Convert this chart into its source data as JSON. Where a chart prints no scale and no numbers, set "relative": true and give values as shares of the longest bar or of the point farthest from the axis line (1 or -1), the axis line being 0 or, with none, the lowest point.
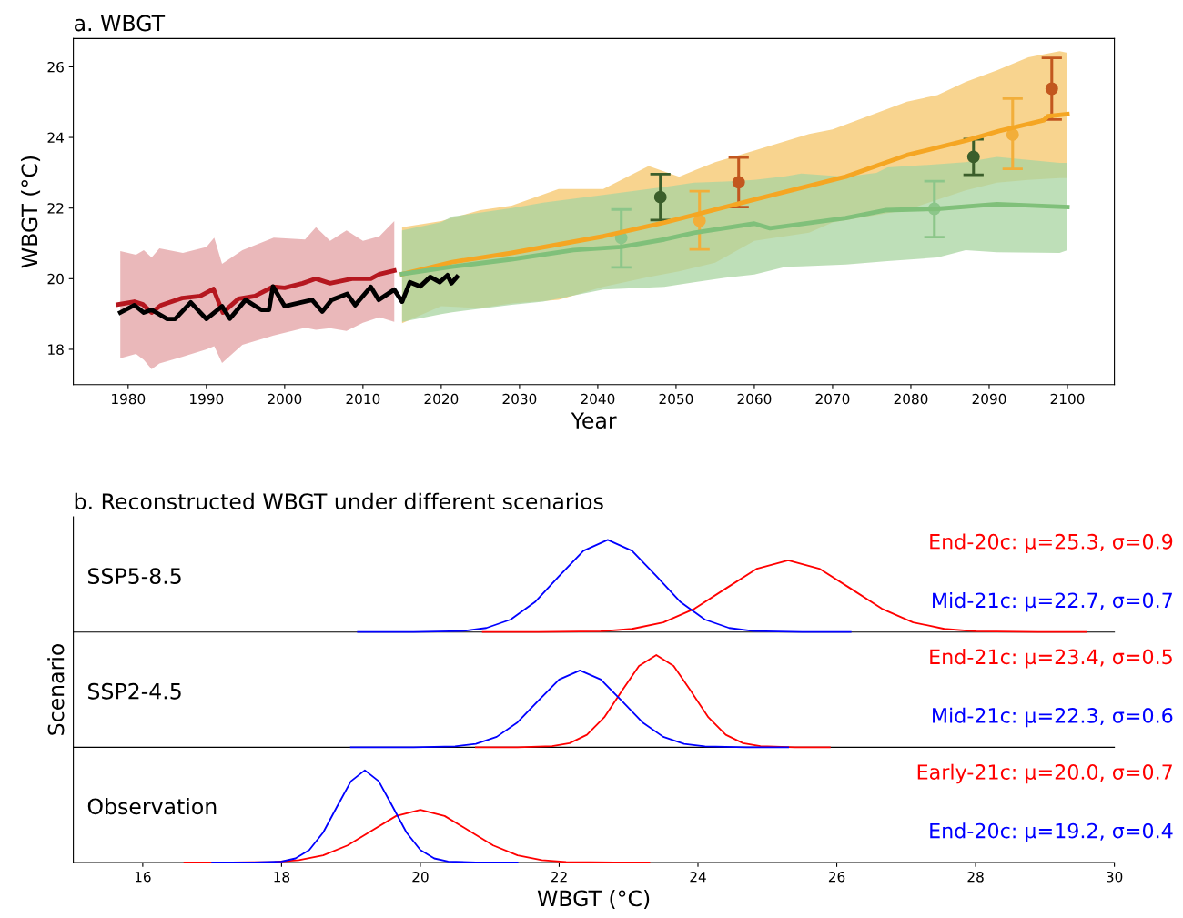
{
  "chart_data": [
    {
      "type": "line",
      "title": "a. WBGT",
      "xlabel": "Year",
      "ylabel": "WBGT (°C)",
      "xlim": [
        1973,
        2106
      ],
      "xticks": [
        1980,
        1990,
        2000,
        2010,
        2020,
        2030,
        2040,
        2050,
        2060,
        2070,
        2080,
        2090,
        2100
      ],
      "ylim": [
        17,
        26.8
      ],
      "yticks": [
        18,
        20,
        22,
        24,
        26
      ],
      "series": [
        {
          "color": "#e3a0a3",
          "x": [
            1979,
            1981,
            1982,
            1983,
            1984,
            1987,
            1990,
            1991,
            1992,
            1994.6,
            1998.6,
            2002.6,
            2004,
            2005.8,
            2007.9,
            2010,
            2012.1,
            2014
          ],
          "values": [
            null,
            null,
            null,
            null,
            null,
            null,
            null,
            null,
            null,
            null,
            null,
            null,
            null,
            null,
            null,
            null,
            null,
            null
          ],
          "lower": [
            17.75,
            17.87,
            17.7,
            17.44,
            17.6,
            17.79,
            18.0,
            18.09,
            17.61,
            18.13,
            18.39,
            18.61,
            18.55,
            18.6,
            18.52,
            18.75,
            18.91,
            18.78
          ],
          "upper": [
            20.78,
            20.68,
            20.81,
            20.6,
            20.86,
            20.73,
            20.9,
            21.16,
            20.42,
            20.81,
            21.16,
            21.11,
            21.46,
            21.07,
            21.37,
            21.07,
            21.2,
            21.63
          ]
        },
        {
          "color": "#f5c56a",
          "x": [
            2015,
            2020,
            2025,
            2029,
            2035,
            2040.7,
            2046.5,
            2050.4,
            2055,
            2060,
            2067,
            2070,
            2079.5,
            2083.4,
            2087,
            2091,
            2095,
            2099,
            2100
          ],
          "values": [
            null,
            null,
            null,
            null,
            null,
            null,
            null,
            null,
            null,
            null,
            null,
            null,
            null,
            null,
            null,
            null,
            null,
            null,
            null
          ],
          "lower": [
            18.74,
            19.22,
            19.17,
            19.3,
            19.4,
            19.77,
            20.05,
            20.21,
            20.45,
            21.07,
            21.3,
            21.59,
            21.95,
            22.24,
            22.5,
            22.72,
            22.8,
            22.85,
            22.85
          ],
          "upper": [
            21.46,
            21.63,
            21.94,
            22.07,
            22.54,
            22.54,
            23.19,
            22.89,
            23.3,
            23.63,
            24.1,
            24.23,
            25.01,
            25.2,
            25.57,
            25.9,
            26.27,
            26.44,
            26.4
          ]
        },
        {
          "color": "#a8d4a0",
          "x": [
            2015,
            2020,
            2021.4,
            2029,
            2033,
            2040.7,
            2048.5,
            2052.3,
            2056.3,
            2060,
            2064,
            2066,
            2071.7,
            2075.6,
            2077,
            2083.4,
            2087,
            2091,
            2099,
            2100
          ],
          "values": [
            null,
            null,
            null,
            null,
            null,
            null,
            null,
            null,
            null,
            null,
            null,
            null,
            null,
            null,
            null,
            null,
            null,
            null,
            null,
            null
          ],
          "lower": [
            18.78,
            19.0,
            19.05,
            19.26,
            19.35,
            19.69,
            19.77,
            19.9,
            20.03,
            20.12,
            20.34,
            20.35,
            20.4,
            20.47,
            20.5,
            20.6,
            20.81,
            20.75,
            20.73,
            20.81
          ],
          "upper": [
            21.37,
            21.6,
            21.76,
            22.0,
            22.15,
            22.37,
            22.6,
            22.72,
            22.75,
            22.8,
            22.9,
            22.98,
            22.89,
            23.0,
            23.15,
            23.24,
            23.3,
            23.45,
            23.28,
            23.28
          ]
        },
        {
          "color": "#b5171f",
          "x": [
            1978.7,
            1980.8,
            1981.9,
            1983,
            1984.2,
            1986.9,
            1989.2,
            1990.9,
            1992.1,
            1994.1,
            1996.2,
            1998.5,
            2000,
            2002.3,
            2004,
            2005.8,
            2008.6,
            2011,
            2012.1,
            2014
          ],
          "values": [
            19.27,
            19.35,
            19.27,
            19.04,
            19.25,
            19.45,
            19.51,
            19.71,
            19.04,
            19.43,
            19.51,
            19.77,
            19.74,
            19.87,
            20.0,
            19.87,
            20.0,
            20.0,
            20.13,
            20.23
          ]
        },
        {
          "color": "#f5a623",
          "x": [
            2015,
            2021.4,
            2029,
            2040.7,
            2048.5,
            2060,
            2071.7,
            2079.5,
            2087.2,
            2091.2,
            2097,
            2097.5,
            2100
          ],
          "values": [
            20.13,
            20.47,
            20.73,
            21.2,
            21.59,
            22.24,
            22.89,
            23.5,
            23.92,
            24.18,
            24.49,
            24.6,
            24.66
          ]
        },
        {
          "color": "#80c07a",
          "x": [
            2015,
            2021.4,
            2029,
            2036.9,
            2043,
            2048.5,
            2052.3,
            2060,
            2062,
            2071.7,
            2076.7,
            2083.4,
            2091,
            2100
          ],
          "values": [
            20.13,
            20.34,
            20.55,
            20.81,
            20.9,
            21.11,
            21.3,
            21.56,
            21.43,
            21.72,
            21.94,
            21.98,
            22.11,
            22.03
          ]
        },
        {
          "color": "#000000",
          "x": [
            1979,
            1980.8,
            1982,
            1983,
            1985,
            1986,
            1988,
            1990,
            1992,
            1993,
            1995,
            1997,
            1998,
            1998.5,
            2000,
            2001.6,
            2003.5,
            2004.8,
            2006,
            2008,
            2009,
            2011,
            2012,
            2014,
            2015,
            2016,
            2017.3,
            2018.6,
            2019.8,
            2020.8,
            2021.3,
            2022
          ],
          "values": [
            19.04,
            19.25,
            19.04,
            19.12,
            18.86,
            18.86,
            19.33,
            18.86,
            19.22,
            18.87,
            19.4,
            19.12,
            19.12,
            19.78,
            19.22,
            19.3,
            19.4,
            19.07,
            19.4,
            19.57,
            19.25,
            19.77,
            19.4,
            19.69,
            19.35,
            19.9,
            19.78,
            20.05,
            19.9,
            20.1,
            19.87,
            20.05
          ]
        },
        {
          "type": "scatter",
          "marker": "circle",
          "color": "#8cc68a",
          "x": [
            2043,
            2083
          ],
          "values": [
            21.16,
            21.98
          ],
          "errors": [
            [
              20.32,
              21.96
            ],
            [
              21.18,
              22.76
            ]
          ]
        },
        {
          "type": "scatter",
          "marker": "circle",
          "color": "#3b5e2b",
          "x": [
            2048,
            2088
          ],
          "values": [
            22.31,
            23.45
          ],
          "errors": [
            [
              21.66,
              22.96
            ],
            [
              22.94,
              23.95
            ]
          ]
        },
        {
          "type": "scatter",
          "marker": "circle",
          "color": "#f2ae3a",
          "x": [
            2053,
            2093
          ],
          "values": [
            21.64,
            24.08
          ],
          "errors": [
            [
              20.83,
              22.48
            ],
            [
              23.11,
              25.1
            ]
          ]
        },
        {
          "type": "scatter",
          "marker": "circle",
          "color": "#c2571f",
          "x": [
            2058,
            2098
          ],
          "values": [
            22.73,
            25.38
          ],
          "errors": [
            [
              22.03,
              23.43
            ],
            [
              24.51,
              26.25
            ]
          ]
        }
      ]
    },
    {
      "type": "line",
      "relative": true,
      "title": "b. Reconstructed WBGT under different scenarios",
      "annotations": [
        "SSP5-8.5"
      ],
      "xlim": [
        15,
        30
      ],
      "tick_labels": false,
      "series": [
        {
          "name": "End-20c: μ=25.3, σ=0.9",
          "color": "#ff0000",
          "x": [
            20.9,
            21.7,
            22.6,
            23.05,
            23.5,
            23.95,
            24.4,
            24.85,
            25.3,
            25.75,
            26.2,
            26.65,
            27.1,
            27.55,
            28.0,
            28.9,
            29.6
          ],
          "values": [
            0,
            0,
            0.009,
            0.034,
            0.105,
            0.253,
            0.472,
            0.687,
            0.778,
            0.687,
            0.472,
            0.253,
            0.105,
            0.034,
            0.009,
            0,
            0
          ]
        },
        {
          "name": "Mid-21c: μ=22.7, σ=0.7",
          "color": "#0000ff",
          "x": [
            19.1,
            19.9,
            20.6,
            20.95,
            21.3,
            21.65,
            22.0,
            22.35,
            22.7,
            23.05,
            23.4,
            23.75,
            24.1,
            24.45,
            24.8,
            25.5,
            26.2
          ],
          "values": [
            0,
            0,
            0.011,
            0.044,
            0.135,
            0.325,
            0.607,
            0.882,
            1,
            0.882,
            0.607,
            0.325,
            0.135,
            0.044,
            0.011,
            0,
            0
          ]
        }
      ]
    },
    {
      "type": "line",
      "relative": true,
      "ylabel": "Scenario",
      "annotations": [
        "SSP2-4.5"
      ],
      "xlim": [
        15,
        30
      ],
      "tick_labels": false,
      "series": [
        {
          "name": "End-21c: μ=23.4, σ=0.5",
          "color": "#ff0000",
          "x": [
            20.8,
            21.4,
            21.9,
            22.15,
            22.4,
            22.65,
            22.9,
            23.15,
            23.4,
            23.65,
            23.9,
            24.15,
            24.4,
            24.65,
            24.9,
            25.4,
            25.9
          ],
          "values": [
            0,
            0,
            0.011,
            0.044,
            0.135,
            0.325,
            0.607,
            0.882,
            1,
            0.882,
            0.607,
            0.325,
            0.135,
            0.044,
            0.011,
            0,
            0
          ]
        },
        {
          "name": "Mid-21c: μ=22.3, σ=0.6",
          "color": "#0000ff",
          "x": [
            19.0,
            19.9,
            20.5,
            20.8,
            21.1,
            21.4,
            21.7,
            22.0,
            22.3,
            22.6,
            22.9,
            23.2,
            23.5,
            23.8,
            24.1,
            24.7,
            25.3
          ],
          "values": [
            0,
            0,
            0.009,
            0.037,
            0.113,
            0.27,
            0.505,
            0.735,
            0.833,
            0.735,
            0.505,
            0.27,
            0.113,
            0.037,
            0.009,
            0,
            0
          ]
        }
      ]
    },
    {
      "type": "line",
      "relative": true,
      "xlabel": "WBGT (°C)",
      "annotations": [
        "Observation"
      ],
      "xlim": [
        15,
        30
      ],
      "xticks": [
        16,
        18,
        20,
        22,
        24,
        26,
        28,
        30
      ],
      "tick_labels": "x",
      "series": [
        {
          "name": "Early-21c: μ=20.0, σ=0.7",
          "color": "#ff0000",
          "x": [
            16.6,
            17.2,
            17.9,
            18.25,
            18.6,
            18.95,
            19.3,
            19.65,
            20.0,
            20.35,
            20.7,
            21.05,
            21.4,
            21.75,
            22.1,
            22.8,
            23.3
          ],
          "values": [
            0,
            0,
            0.006,
            0.025,
            0.077,
            0.185,
            0.346,
            0.504,
            0.571,
            0.504,
            0.346,
            0.185,
            0.077,
            0.025,
            0.006,
            0,
            0
          ]
        },
        {
          "name": "End-20c: μ=19.2, σ=0.4",
          "color": "#0000ff",
          "x": [
            17.0,
            17.6,
            18.0,
            18.2,
            18.4,
            18.6,
            18.8,
            19.0,
            19.2,
            19.4,
            19.6,
            19.8,
            20.0,
            20.2,
            20.4,
            20.8,
            21.4
          ],
          "values": [
            0,
            0,
            0.011,
            0.044,
            0.135,
            0.325,
            0.607,
            0.882,
            1,
            0.882,
            0.607,
            0.325,
            0.135,
            0.044,
            0.011,
            0,
            0
          ]
        }
      ]
    }
  ]
}
